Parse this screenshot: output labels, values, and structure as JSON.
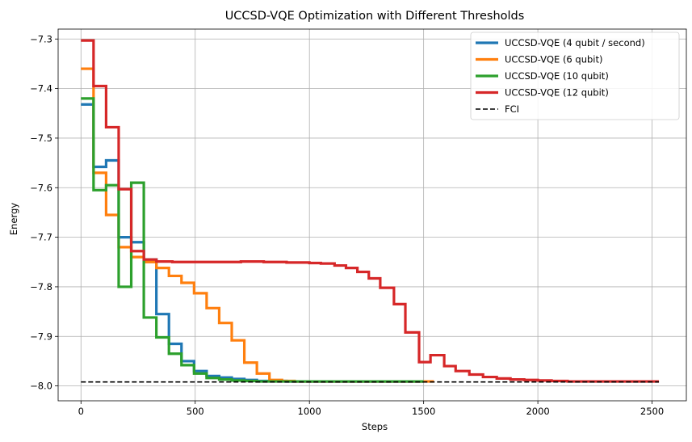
{
  "chart_data": {
    "type": "line",
    "title": "UCCSD-VQE Optimization with Different Thresholds",
    "xlabel": "Steps",
    "ylabel": "Energy",
    "xlim": [
      -100,
      2650
    ],
    "ylim": [
      -8.03,
      -7.28
    ],
    "xticks": [
      0,
      500,
      1000,
      1500,
      2000,
      2500
    ],
    "yticks": [
      -8.0,
      -7.9,
      -7.8,
      -7.7,
      -7.6,
      -7.5,
      -7.4,
      -7.3
    ],
    "xtick_labels": [
      "0",
      "500",
      "1000",
      "1500",
      "2000",
      "2500"
    ],
    "ytick_labels": [
      "−8.0",
      "−7.9",
      "−7.8",
      "−7.7",
      "−7.6",
      "−7.5",
      "−7.4",
      "−7.3"
    ],
    "grid": true,
    "legend_position": "top-right",
    "series": [
      {
        "name": "UCCSD-VQE (4 qubit / second)",
        "color": "#1f77b4",
        "step": true,
        "points": [
          [
            0,
            -7.432
          ],
          [
            55,
            -7.558
          ],
          [
            110,
            -7.545
          ],
          [
            165,
            -7.7
          ],
          [
            220,
            -7.71
          ],
          [
            275,
            -7.745
          ],
          [
            330,
            -7.765
          ],
          [
            330,
            -7.855
          ],
          [
            385,
            -7.915
          ],
          [
            440,
            -7.95
          ],
          [
            495,
            -7.97
          ],
          [
            550,
            -7.98
          ],
          [
            605,
            -7.983
          ],
          [
            660,
            -7.986
          ],
          [
            715,
            -7.988
          ],
          [
            770,
            -7.99
          ],
          [
            825,
            -7.99
          ],
          [
            900,
            -7.991
          ],
          [
            1100,
            -7.991
          ],
          [
            1300,
            -7.991
          ],
          [
            1500,
            -7.991
          ]
        ]
      },
      {
        "name": "UCCSD-VQE (6 qubit)",
        "color": "#ff7f0e",
        "step": true,
        "points": [
          [
            0,
            -7.36
          ],
          [
            55,
            -7.57
          ],
          [
            110,
            -7.655
          ],
          [
            165,
            -7.72
          ],
          [
            220,
            -7.74
          ],
          [
            275,
            -7.75
          ],
          [
            330,
            -7.762
          ],
          [
            385,
            -7.778
          ],
          [
            440,
            -7.792
          ],
          [
            495,
            -7.813
          ],
          [
            550,
            -7.843
          ],
          [
            605,
            -7.873
          ],
          [
            660,
            -7.908
          ],
          [
            715,
            -7.953
          ],
          [
            770,
            -7.975
          ],
          [
            825,
            -7.988
          ],
          [
            880,
            -7.99
          ],
          [
            935,
            -7.991
          ],
          [
            1000,
            -7.991
          ],
          [
            1200,
            -7.991
          ],
          [
            1400,
            -7.991
          ],
          [
            1545,
            -7.991
          ]
        ]
      },
      {
        "name": "UCCSD-VQE (10 qubit)",
        "color": "#2ca02c",
        "step": true,
        "points": [
          [
            0,
            -7.42
          ],
          [
            55,
            -7.605
          ],
          [
            110,
            -7.595
          ],
          [
            165,
            -7.8
          ],
          [
            220,
            -7.59
          ],
          [
            275,
            -7.862
          ],
          [
            330,
            -7.902
          ],
          [
            385,
            -7.935
          ],
          [
            440,
            -7.958
          ],
          [
            495,
            -7.975
          ],
          [
            550,
            -7.984
          ],
          [
            605,
            -7.987
          ],
          [
            660,
            -7.989
          ],
          [
            715,
            -7.99
          ],
          [
            770,
            -7.991
          ],
          [
            900,
            -7.991
          ],
          [
            1100,
            -7.991
          ],
          [
            1300,
            -7.991
          ],
          [
            1500,
            -7.991
          ]
        ]
      },
      {
        "name": "UCCSD-VQE (12 qubit)",
        "color": "#d62728",
        "step": true,
        "points": [
          [
            0,
            -7.303
          ],
          [
            55,
            -7.395
          ],
          [
            110,
            -7.478
          ],
          [
            165,
            -7.603
          ],
          [
            220,
            -7.728
          ],
          [
            275,
            -7.745
          ],
          [
            330,
            -7.749
          ],
          [
            400,
            -7.75
          ],
          [
            500,
            -7.75
          ],
          [
            600,
            -7.75
          ],
          [
            700,
            -7.749
          ],
          [
            800,
            -7.75
          ],
          [
            900,
            -7.751
          ],
          [
            1000,
            -7.752
          ],
          [
            1050,
            -7.753
          ],
          [
            1110,
            -7.757
          ],
          [
            1160,
            -7.762
          ],
          [
            1210,
            -7.77
          ],
          [
            1260,
            -7.783
          ],
          [
            1310,
            -7.802
          ],
          [
            1370,
            -7.835
          ],
          [
            1420,
            -7.892
          ],
          [
            1480,
            -7.952
          ],
          [
            1530,
            -7.938
          ],
          [
            1590,
            -7.96
          ],
          [
            1640,
            -7.97
          ],
          [
            1700,
            -7.977
          ],
          [
            1760,
            -7.982
          ],
          [
            1820,
            -7.985
          ],
          [
            1880,
            -7.987
          ],
          [
            1940,
            -7.988
          ],
          [
            2000,
            -7.989
          ],
          [
            2060,
            -7.99
          ],
          [
            2130,
            -7.991
          ],
          [
            2250,
            -7.991
          ],
          [
            2400,
            -7.991
          ],
          [
            2530,
            -7.991
          ]
        ]
      },
      {
        "name": "FCI",
        "color": "#000000",
        "dashed": true,
        "points": [
          [
            0,
            -7.992
          ],
          [
            2530,
            -7.992
          ]
        ]
      }
    ]
  }
}
